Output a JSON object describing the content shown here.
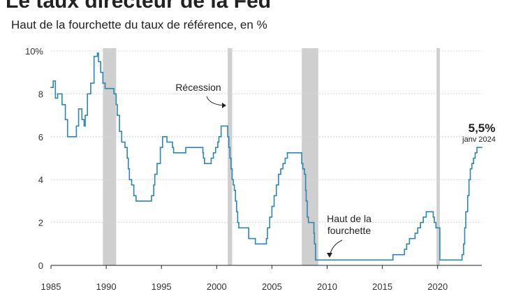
{
  "chart_data": {
    "type": "line",
    "title": "Le taux directeur de la Fed",
    "subtitle": "Haut de la fourchette du taux de référence, en %",
    "color": "#2a86b3",
    "recession_color": "#cfcfcf",
    "step": true,
    "grid": true,
    "xlim": [
      1985,
      2024
    ],
    "xticks": [
      1985,
      1990,
      1995,
      2000,
      2005,
      2010,
      2015,
      2020
    ],
    "ylim": [
      0,
      10
    ],
    "yticks": [
      0,
      2,
      4,
      6,
      {
        "value": 10,
        "label": "10%"
      },
      8
    ],
    "recessions": [
      [
        1989.7,
        1990.9
      ],
      [
        2001.0,
        2001.4
      ],
      [
        2007.7,
        2009.2
      ],
      [
        2019.9,
        2020.2
      ]
    ],
    "annotations": {
      "recession": "Récession",
      "upper_1": "Haut de la",
      "upper_2": "fourchette"
    },
    "last_label": {
      "value": 5.5,
      "label": "5,5%",
      "date": "janv 2024"
    },
    "x": [
      1985.0,
      1985.2,
      1985.4,
      1985.6,
      1986.0,
      1986.3,
      1986.5,
      1986.8,
      1987.3,
      1987.5,
      1987.8,
      1988.0,
      1988.1,
      1988.3,
      1988.6,
      1988.9,
      1989.2,
      1989.3,
      1989.5,
      1989.7,
      1989.9,
      1990.0,
      1990.7,
      1990.9,
      1991.0,
      1991.2,
      1991.4,
      1991.7,
      1991.9,
      1992.0,
      1992.1,
      1992.3,
      1992.5,
      1992.7,
      1994.1,
      1994.3,
      1994.4,
      1994.6,
      1994.9,
      1995.1,
      1995.5,
      1996.0,
      1996.1,
      1997.2,
      1998.75,
      1998.8,
      1998.9,
      1999.5,
      1999.7,
      1999.9,
      2000.1,
      2000.2,
      2000.4,
      2001.0,
      2001.1,
      2001.2,
      2001.3,
      2001.4,
      2001.5,
      2001.6,
      2001.7,
      2001.8,
      2001.9,
      2002.0,
      2002.9,
      2003.5,
      2004.5,
      2004.6,
      2004.8,
      2005.0,
      2005.2,
      2005.4,
      2005.6,
      2005.8,
      2006.0,
      2006.2,
      2006.4,
      2007.7,
      2007.8,
      2007.95,
      2008.05,
      2008.1,
      2008.2,
      2008.3,
      2008.8,
      2008.85,
      2008.95,
      2015.96,
      2017.0,
      2017.2,
      2017.45,
      2017.96,
      2018.2,
      2018.45,
      2018.7,
      2018.97,
      2019.6,
      2019.7,
      2019.85,
      2020.2,
      2022.21,
      2022.35,
      2022.45,
      2022.55,
      2022.72,
      2022.84,
      2022.96,
      2023.1,
      2023.25,
      2023.4,
      2023.56
    ],
    "values": [
      8.3,
      8.6,
      7.8,
      8.0,
      7.5,
      6.8,
      6.0,
      6.0,
      6.5,
      7.3,
      6.8,
      6.5,
      7.0,
      8.0,
      8.5,
      9.75,
      9.9,
      9.5,
      9.0,
      8.5,
      8.25,
      8.25,
      8.0,
      7.5,
      7.0,
      6.25,
      5.75,
      5.5,
      5.0,
      4.5,
      4.0,
      3.75,
      3.25,
      3.0,
      3.25,
      3.75,
      4.25,
      4.75,
      5.5,
      6.0,
      5.75,
      5.5,
      5.25,
      5.5,
      5.25,
      5.0,
      4.75,
      5.0,
      5.25,
      5.5,
      5.75,
      6.0,
      6.5,
      6.0,
      5.5,
      5.0,
      4.5,
      4.0,
      3.75,
      3.5,
      3.0,
      2.5,
      2.0,
      1.75,
      1.25,
      1.0,
      1.25,
      1.75,
      2.25,
      2.75,
      3.25,
      3.75,
      4.25,
      4.5,
      4.75,
      5.0,
      5.25,
      4.75,
      4.5,
      4.25,
      3.5,
      3.0,
      2.25,
      2.0,
      1.5,
      1.0,
      0.25,
      0.5,
      0.75,
      1.0,
      1.25,
      1.5,
      1.75,
      2.0,
      2.25,
      2.5,
      2.25,
      2.0,
      1.75,
      0.25,
      0.5,
      1.0,
      1.75,
      2.5,
      3.25,
      4.0,
      4.5,
      4.75,
      5.0,
      5.25,
      5.5
    ]
  }
}
